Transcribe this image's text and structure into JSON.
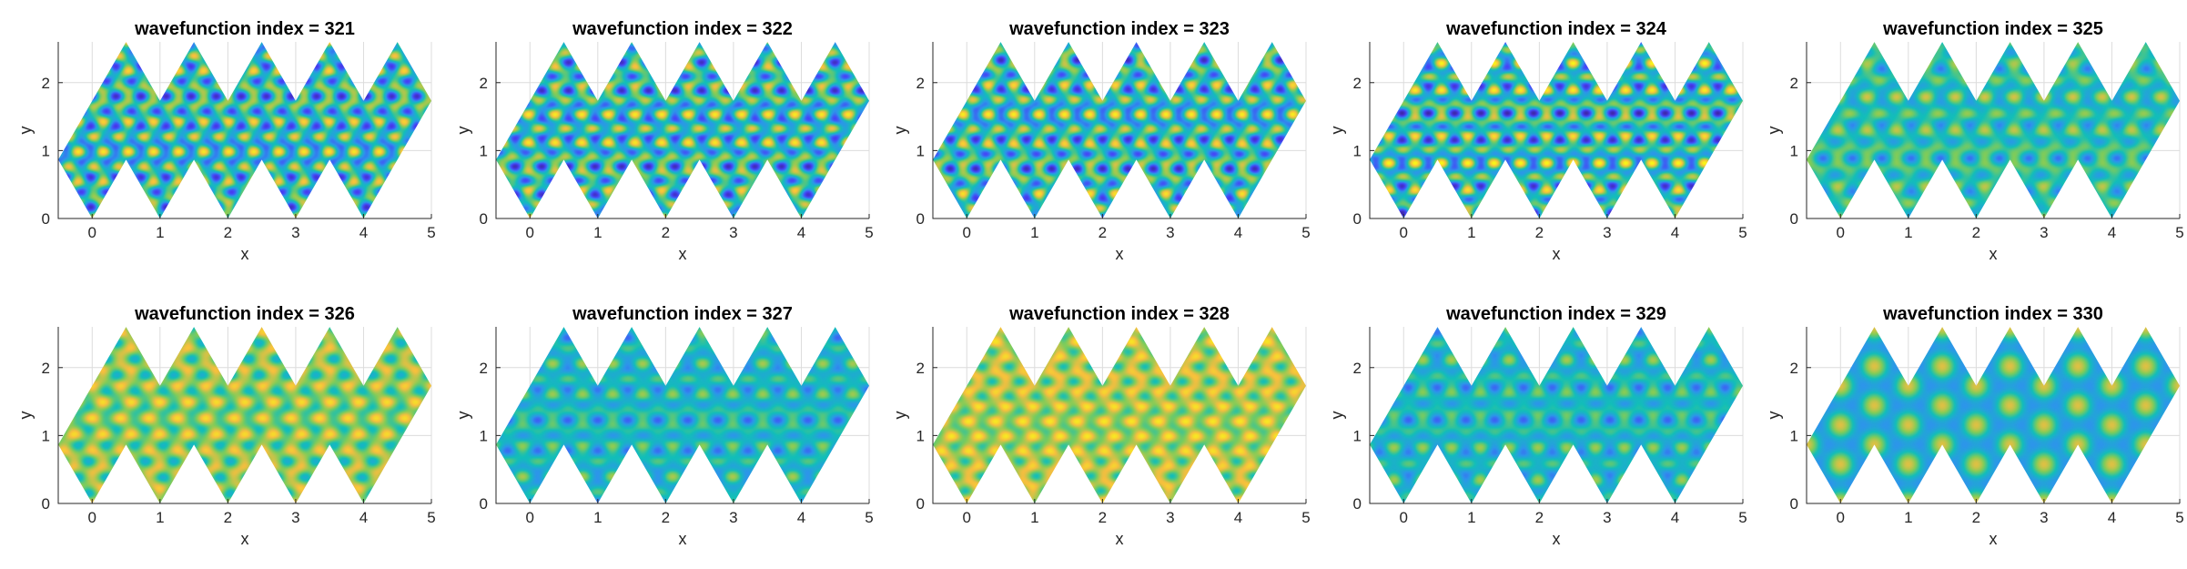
{
  "figure": {
    "grid_rows": 2,
    "grid_cols": 5,
    "colormap": [
      "#3e26a8",
      "#4743f8",
      "#2d95eb",
      "#12beb9",
      "#81cc59",
      "#f5be3f",
      "#f9fb15"
    ],
    "background_color": "#12b4c3"
  },
  "chart_data": [
    {
      "type": "heatmap",
      "title": "wavefunction index = 321",
      "xlabel": "x",
      "ylabel": "y",
      "xlim": [
        -0.5,
        5
      ],
      "ylim": [
        0,
        2.6
      ],
      "xticks": [
        "0",
        "1",
        "2",
        "3",
        "4",
        "5"
      ],
      "yticks": [
        "0",
        "1",
        "2"
      ],
      "grid": true,
      "field": {
        "kx": 17.0,
        "ky": 15.5,
        "px": 0.0,
        "py": 0.4,
        "amp": 1.0,
        "bias": 0.0
      }
    },
    {
      "type": "heatmap",
      "title": "wavefunction index = 322",
      "xlabel": "x",
      "ylabel": "y",
      "xlim": [
        -0.5,
        5
      ],
      "ylim": [
        0,
        2.6
      ],
      "xticks": [
        "0",
        "1",
        "2",
        "3",
        "4",
        "5"
      ],
      "yticks": [
        "0",
        "1",
        "2"
      ],
      "grid": true,
      "field": {
        "kx": 16.0,
        "ky": 16.5,
        "px": 0.6,
        "py": 0.1,
        "amp": 1.0,
        "bias": 0.0
      }
    },
    {
      "type": "heatmap",
      "title": "wavefunction index = 323",
      "xlabel": "x",
      "ylabel": "y",
      "xlim": [
        -0.5,
        5
      ],
      "ylim": [
        0,
        2.6
      ],
      "xticks": [
        "0",
        "1",
        "2",
        "3",
        "4",
        "5"
      ],
      "yticks": [
        "0",
        "1",
        "2"
      ],
      "grid": true,
      "field": {
        "kx": 16.8,
        "ky": 15.8,
        "px": 1.2,
        "py": 0.9,
        "amp": 1.0,
        "bias": 0.0
      }
    },
    {
      "type": "heatmap",
      "title": "wavefunction index = 324",
      "xlabel": "x",
      "ylabel": "y",
      "xlim": [
        -0.5,
        5
      ],
      "ylim": [
        0,
        2.6
      ],
      "xticks": [
        "0",
        "1",
        "2",
        "3",
        "4",
        "5"
      ],
      "yticks": [
        "0",
        "1",
        "2"
      ],
      "grid": true,
      "field": {
        "kx": 16.2,
        "ky": 17.2,
        "px": 0.3,
        "py": 1.7,
        "amp": 1.0,
        "bias": 0.0
      }
    },
    {
      "type": "heatmap",
      "title": "wavefunction index = 325",
      "xlabel": "x",
      "ylabel": "y",
      "xlim": [
        -0.5,
        5
      ],
      "ylim": [
        0,
        2.6
      ],
      "xticks": [
        "0",
        "1",
        "2",
        "3",
        "4",
        "5"
      ],
      "yticks": [
        "0",
        "1",
        "2"
      ],
      "grid": true,
      "field": {
        "kx": 14.5,
        "ky": 14.0,
        "px": 0.8,
        "py": 0.2,
        "amp": 0.55,
        "bias": 0.05
      }
    },
    {
      "type": "heatmap",
      "title": "wavefunction index = 326",
      "xlabel": "x",
      "ylabel": "y",
      "xlim": [
        -0.5,
        5
      ],
      "ylim": [
        0,
        2.6
      ],
      "xticks": [
        "0",
        "1",
        "2",
        "3",
        "4",
        "5"
      ],
      "yticks": [
        "0",
        "1",
        "2"
      ],
      "grid": true,
      "field": {
        "kx": 15.0,
        "ky": 14.5,
        "px": 0.4,
        "py": 0.6,
        "amp": 0.6,
        "bias": 0.35
      }
    },
    {
      "type": "heatmap",
      "title": "wavefunction index = 327",
      "xlabel": "x",
      "ylabel": "y",
      "xlim": [
        -0.5,
        5
      ],
      "ylim": [
        0,
        2.6
      ],
      "xticks": [
        "0",
        "1",
        "2",
        "3",
        "4",
        "5"
      ],
      "yticks": [
        "0",
        "1",
        "2"
      ],
      "grid": true,
      "field": {
        "kx": 14.2,
        "ky": 15.2,
        "px": 1.5,
        "py": 0.3,
        "amp": 0.5,
        "bias": -0.05
      }
    },
    {
      "type": "heatmap",
      "title": "wavefunction index = 328",
      "xlabel": "x",
      "ylabel": "y",
      "xlim": [
        -0.5,
        5
      ],
      "ylim": [
        0,
        2.6
      ],
      "xticks": [
        "0",
        "1",
        "2",
        "3",
        "4",
        "5"
      ],
      "yticks": [
        "0",
        "1",
        "2"
      ],
      "grid": true,
      "field": {
        "kx": 15.7,
        "ky": 15.7,
        "px": 0.0,
        "py": 0.0,
        "amp": 0.55,
        "bias": 0.45
      }
    },
    {
      "type": "heatmap",
      "title": "wavefunction index = 329",
      "xlabel": "x",
      "ylabel": "y",
      "xlim": [
        -0.5,
        5
      ],
      "ylim": [
        0,
        2.6
      ],
      "xticks": [
        "0",
        "1",
        "2",
        "3",
        "4",
        "5"
      ],
      "yticks": [
        "0",
        "1",
        "2"
      ],
      "grid": true,
      "field": {
        "kx": 14.8,
        "ky": 14.3,
        "px": 2.1,
        "py": 1.1,
        "amp": 0.5,
        "bias": -0.05
      }
    },
    {
      "type": "heatmap",
      "title": "wavefunction index = 330",
      "xlabel": "x",
      "ylabel": "y",
      "xlim": [
        -0.5,
        5
      ],
      "ylim": [
        0,
        2.6
      ],
      "xticks": [
        "0",
        "1",
        "2",
        "3",
        "4",
        "5"
      ],
      "yticks": [
        "0",
        "1",
        "2"
      ],
      "grid": true,
      "field": {
        "kx": 12.56,
        "ky": 12.56,
        "px": 0.0,
        "py": 0.0,
        "amp": 1.1,
        "bias": -0.55,
        "lattice": true
      }
    }
  ]
}
